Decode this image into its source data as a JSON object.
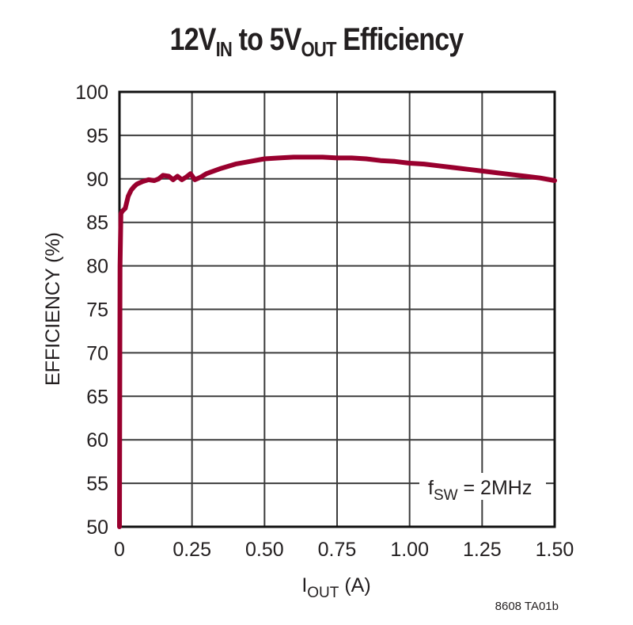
{
  "title": {
    "prefix": "12V",
    "sub1": "IN",
    "middle": " to 5V",
    "sub2": "OUT",
    "suffix": " Efficiency"
  },
  "axes": {
    "ylabel": "EFFICIENCY (%)",
    "xlabel_main": "I",
    "xlabel_sub": "OUT",
    "xlabel_unit": " (A)"
  },
  "annotation": {
    "main": "f",
    "sub": "SW",
    "rest": " = 2MHz"
  },
  "figure_code": "8608 TA01b",
  "colors": {
    "curve": "#99002e",
    "grid": "#3c3c3c",
    "frame": "#111111"
  },
  "chart_data": {
    "type": "line",
    "title": "12V_IN to 5V_OUT Efficiency",
    "xlabel": "I_OUT (A)",
    "ylabel": "EFFICIENCY (%)",
    "xlim": [
      0,
      1.5
    ],
    "ylim": [
      50,
      100
    ],
    "grid": true,
    "legend": "none",
    "x_ticks": [
      "0",
      "0.25",
      "0.50",
      "0.75",
      "1.00",
      "1.25",
      "1.50"
    ],
    "y_ticks": [
      "50",
      "55",
      "60",
      "65",
      "70",
      "75",
      "80",
      "85",
      "90",
      "95",
      "100"
    ],
    "annotations": [
      "f_SW = 2MHz"
    ],
    "series": [
      {
        "name": "Efficiency",
        "x": [
          0.0,
          0.002,
          0.005,
          0.01,
          0.02,
          0.03,
          0.04,
          0.05,
          0.06,
          0.08,
          0.1,
          0.12,
          0.135,
          0.15,
          0.17,
          0.185,
          0.2,
          0.215,
          0.23,
          0.245,
          0.26,
          0.28,
          0.3,
          0.35,
          0.4,
          0.45,
          0.5,
          0.55,
          0.6,
          0.65,
          0.7,
          0.75,
          0.8,
          0.85,
          0.9,
          0.95,
          1.0,
          1.05,
          1.1,
          1.15,
          1.2,
          1.25,
          1.3,
          1.35,
          1.4,
          1.45,
          1.5
        ],
        "values": [
          50.0,
          80.0,
          86.0,
          86.3,
          86.6,
          88.0,
          88.7,
          89.1,
          89.4,
          89.7,
          89.9,
          89.8,
          90.0,
          90.4,
          90.3,
          89.9,
          90.3,
          89.9,
          90.2,
          90.6,
          89.9,
          90.2,
          90.6,
          91.2,
          91.7,
          92.0,
          92.3,
          92.4,
          92.5,
          92.5,
          92.5,
          92.4,
          92.4,
          92.3,
          92.1,
          92.0,
          91.8,
          91.7,
          91.5,
          91.3,
          91.1,
          90.9,
          90.7,
          90.5,
          90.3,
          90.1,
          89.8
        ]
      }
    ]
  }
}
